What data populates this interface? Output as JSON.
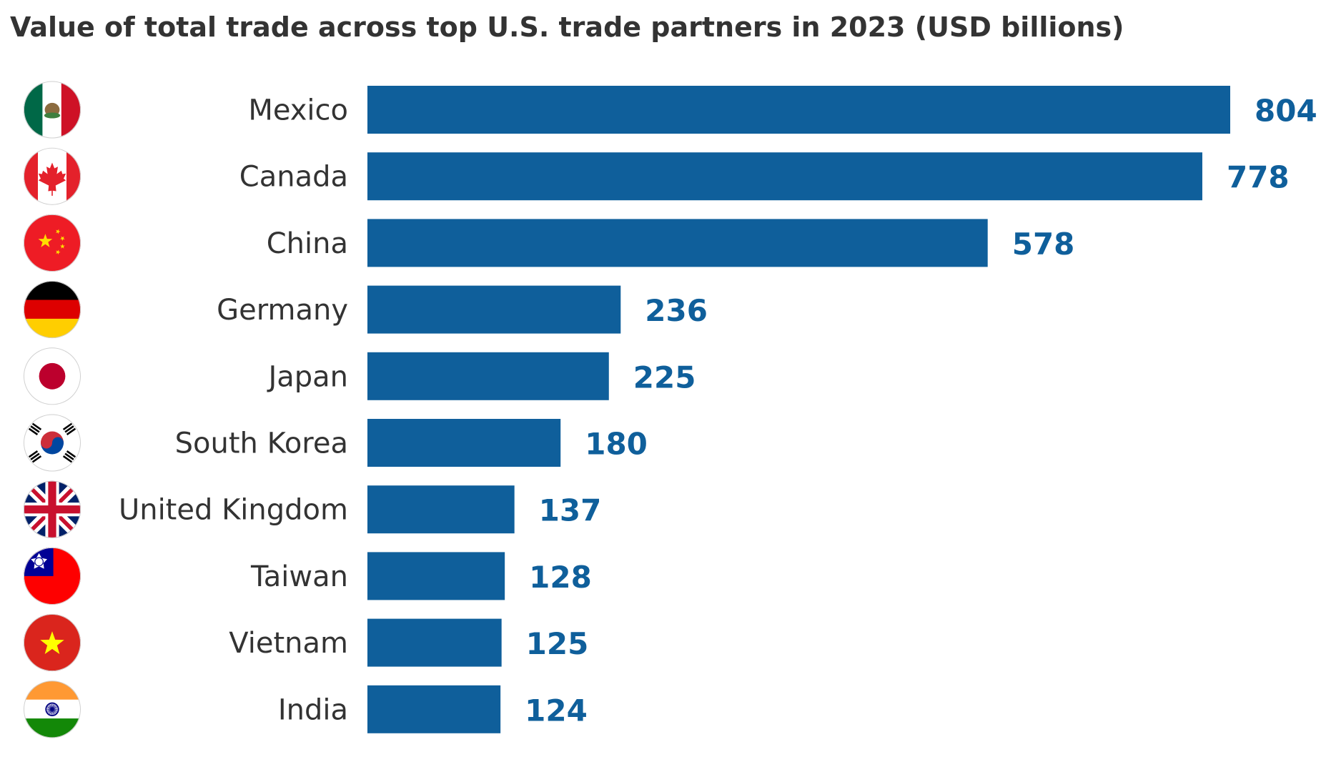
{
  "chart_data": {
    "type": "bar",
    "orientation": "horizontal",
    "title": "Value of total trade across top U.S. trade partners in 2023 (USD billions)",
    "xlabel": "",
    "ylabel": "",
    "categories": [
      "Mexico",
      "Canada",
      "China",
      "Germany",
      "Japan",
      "South Korea",
      "United Kingdom",
      "Taiwan",
      "Vietnam",
      "India"
    ],
    "values": [
      804,
      778,
      578,
      236,
      225,
      180,
      137,
      128,
      125,
      124
    ],
    "flags": [
      "mexico-flag-icon",
      "canada-flag-icon",
      "china-flag-icon",
      "germany-flag-icon",
      "japan-flag-icon",
      "south-korea-flag-icon",
      "united-kingdom-flag-icon",
      "taiwan-flag-icon",
      "vietnam-flag-icon",
      "india-flag-icon"
    ],
    "xlim": [
      0,
      804
    ],
    "grid": false,
    "legend": "none",
    "bar_color": "#0F5F9B",
    "label_color": "#0F5F9B"
  }
}
